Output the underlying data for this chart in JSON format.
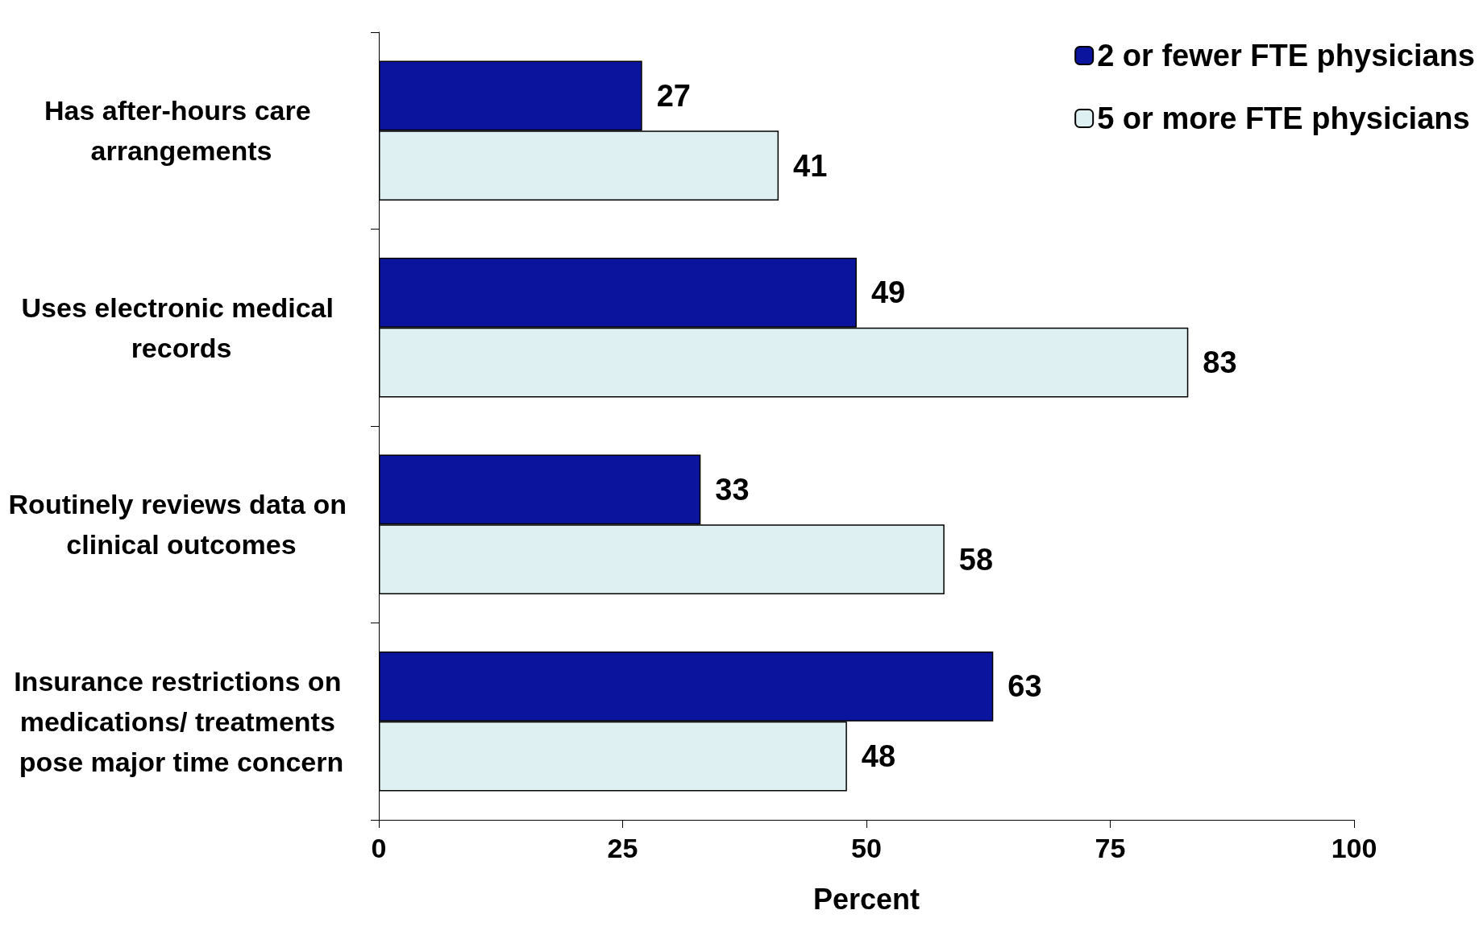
{
  "chart_data": {
    "type": "bar",
    "orientation": "horizontal",
    "categories": [
      "Has after-hours care arrangements",
      "Uses electronic medical records",
      "Routinely reviews data on clinical outcomes",
      "Insurance restrictions on medications/ treatments pose major time concern"
    ],
    "series": [
      {
        "name": "2 or fewer FTE physicians",
        "color": "#0a149c",
        "values": [
          27,
          49,
          33,
          63
        ]
      },
      {
        "name": "5 or more FTE physicians",
        "color": "#dff0f3",
        "values": [
          41,
          83,
          58,
          48
        ]
      }
    ],
    "xlabel": "Percent",
    "xlim": [
      0,
      100
    ],
    "xticks": [
      0,
      25,
      50,
      75,
      100
    ],
    "data_labels": true,
    "grid": false,
    "legend": "top right"
  }
}
